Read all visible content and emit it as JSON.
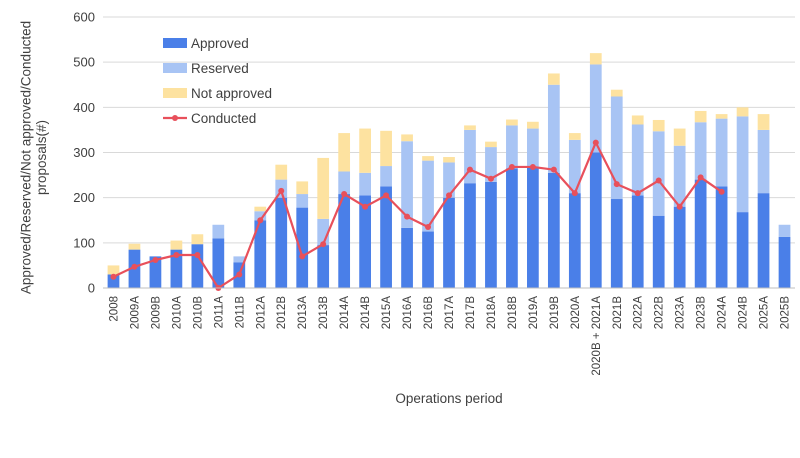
{
  "chart_data": {
    "type": "bar",
    "stacked": true,
    "xlabel": "Operations period",
    "ylabel": "Approved/Reserved/Not approved/Conducted proposals(#)",
    "ylim": [
      0,
      600
    ],
    "yticks": [
      0,
      100,
      200,
      300,
      400,
      500,
      600
    ],
    "grid": true,
    "legend_position": "top-left",
    "categories": [
      "2008",
      "2009A",
      "2009B",
      "2010A",
      "2010B",
      "2011A",
      "2011B",
      "2012A",
      "2012B",
      "2013A",
      "2013B",
      "2014A",
      "2014B",
      "2015A",
      "2016A",
      "2016B",
      "2017A",
      "2017B",
      "2018A",
      "2018B",
      "2019A",
      "2019B",
      "2020A",
      "2020B + 2021A",
      "2021B",
      "2022A",
      "2022B",
      "2023A",
      "2023B",
      "2024A",
      "2024B",
      "2025A",
      "2025B"
    ],
    "series": [
      {
        "name": "Approved",
        "kind": "bar",
        "color": "#4a7fe8",
        "values": [
          30,
          85,
          70,
          85,
          97,
          110,
          57,
          150,
          200,
          178,
          95,
          208,
          205,
          225,
          133,
          125,
          200,
          232,
          235,
          265,
          268,
          255,
          210,
          300,
          197,
          205,
          160,
          180,
          240,
          225,
          168,
          210,
          113
        ]
      },
      {
        "name": "Reserved",
        "kind": "bar",
        "color": "#a8c4f4",
        "values": [
          0,
          0,
          0,
          0,
          0,
          30,
          13,
          20,
          40,
          30,
          58,
          50,
          50,
          45,
          192,
          157,
          78,
          118,
          77,
          95,
          85,
          195,
          118,
          195,
          227,
          157,
          187,
          135,
          127,
          150,
          212,
          140,
          27
        ]
      },
      {
        "name": "Not approved",
        "kind": "bar",
        "color": "#fde2a0",
        "values": [
          20,
          13,
          0,
          20,
          22,
          0,
          0,
          10,
          33,
          28,
          135,
          85,
          98,
          78,
          15,
          10,
          12,
          10,
          12,
          13,
          15,
          25,
          15,
          25,
          15,
          20,
          25,
          38,
          25,
          10,
          20,
          35,
          0
        ]
      },
      {
        "name": "Conducted",
        "kind": "line",
        "color": "#e8505b",
        "values": [
          25,
          47,
          62,
          73,
          73,
          0,
          30,
          150,
          215,
          70,
          97,
          208,
          180,
          205,
          158,
          135,
          205,
          262,
          242,
          268,
          268,
          262,
          210,
          322,
          230,
          210,
          238,
          180,
          245,
          213,
          null,
          null,
          null
        ]
      }
    ]
  }
}
